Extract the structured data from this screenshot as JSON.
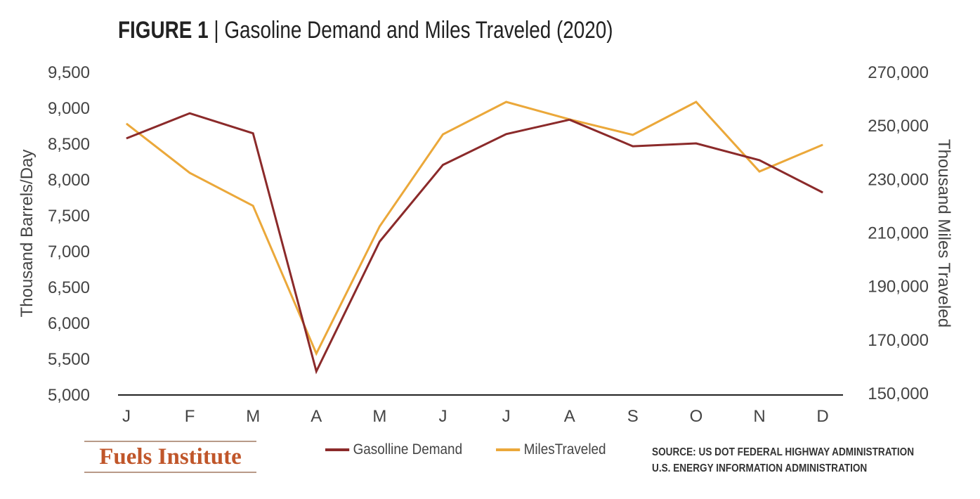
{
  "title": {
    "prefix": "FIGURE 1",
    "separator": "|",
    "text": "Gasoline Demand and Miles Traveled (2020)"
  },
  "logo_text": "Fuels Institute",
  "source_lines": [
    "SOURCE: US DOT FEDERAL HIGHWAY ADMINISTRATION",
    "U.S. ENERGY INFORMATION ADMINISTRATION"
  ],
  "colors": {
    "gasoline": "#8b2a2a",
    "miles": "#eba83a",
    "axis": "#222222"
  },
  "chart_data": {
    "type": "line",
    "title": "Gasoline Demand and Miles Traveled (2020)",
    "categories": [
      "J",
      "F",
      "M",
      "A",
      "M",
      "J",
      "J",
      "A",
      "S",
      "O",
      "N",
      "D"
    ],
    "y_left": {
      "label": "Thousand Barrels/Day",
      "range": [
        5000,
        9500
      ],
      "ticks": [
        "5,000",
        "5,500",
        "6,000",
        "6,500",
        "7,000",
        "7,500",
        "8,000",
        "8,500",
        "9,000",
        "9,500"
      ]
    },
    "y_right": {
      "label": "Thousand Miles Traveled",
      "range": [
        150000,
        270000
      ],
      "ticks": [
        "150,000",
        "170,000",
        "190,000",
        "210,000",
        "230,000",
        "250,000",
        "270,000"
      ]
    },
    "series": [
      {
        "name": "Gasolline Demand",
        "axis": "left",
        "values": [
          8570,
          8920,
          8640,
          5320,
          7130,
          8200,
          8630,
          8830,
          8460,
          8500,
          8265,
          7815
        ]
      },
      {
        "name": "MilesTraveled",
        "axis": "right",
        "values": [
          250600,
          232200,
          219900,
          164700,
          212200,
          246600,
          258700,
          252200,
          246400,
          258700,
          232700,
          242700
        ]
      }
    ],
    "grid": false,
    "legend": "bottom-center"
  }
}
